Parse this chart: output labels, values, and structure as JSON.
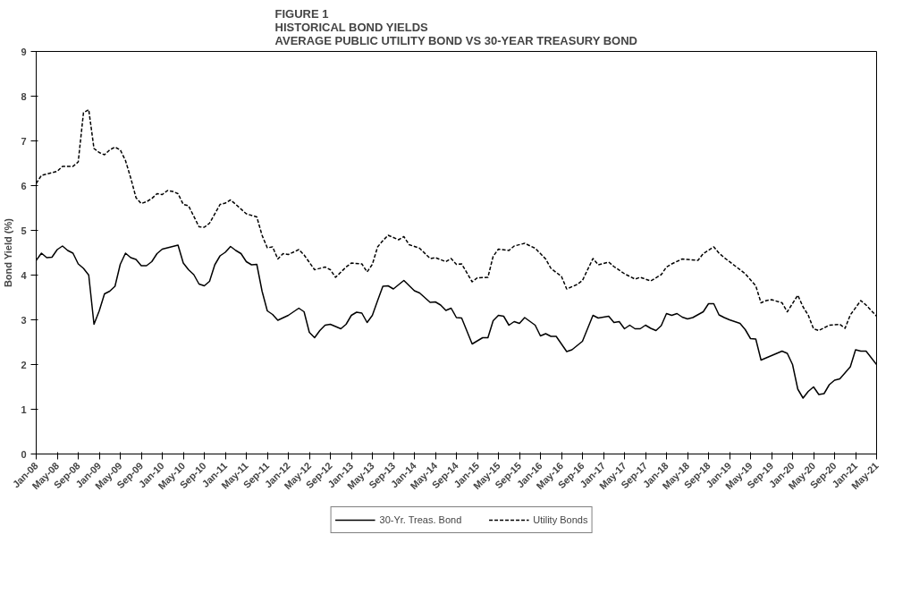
{
  "chart_data": {
    "type": "line",
    "title": "FIGURE 1\nHISTORICAL BOND YIELDS\nAVERAGE PUBLIC UTILITY BOND VS 30-YEAR TREASURY BOND",
    "ylabel": "Bond Yield (%)",
    "ylim": [
      0,
      9
    ],
    "yticks": [
      0,
      1,
      2,
      3,
      4,
      5,
      6,
      7,
      8,
      9
    ],
    "xlim": [
      "2008-01",
      "2021-05"
    ],
    "xticks": [
      {
        "value": "2008-01",
        "label": "Jan-08"
      },
      {
        "value": "2008-05",
        "label": "May-08"
      },
      {
        "value": "2008-09",
        "label": "Sep-08"
      },
      {
        "value": "2009-01",
        "label": "Jan-09"
      },
      {
        "value": "2009-05",
        "label": "May-09"
      },
      {
        "value": "2009-09",
        "label": "Sep-09"
      },
      {
        "value": "2010-01",
        "label": "Jan-10"
      },
      {
        "value": "2010-05",
        "label": "May-10"
      },
      {
        "value": "2010-09",
        "label": "Sep-10"
      },
      {
        "value": "2011-01",
        "label": "Jan-11"
      },
      {
        "value": "2011-05",
        "label": "May-11"
      },
      {
        "value": "2011-09",
        "label": "Sep-11"
      },
      {
        "value": "2012-01",
        "label": "Jan-12"
      },
      {
        "value": "2012-05",
        "label": "May-12"
      },
      {
        "value": "2012-09",
        "label": "Sep-12"
      },
      {
        "value": "2013-01",
        "label": "Jan-13"
      },
      {
        "value": "2013-05",
        "label": "May-13"
      },
      {
        "value": "2013-09",
        "label": "Sep-13"
      },
      {
        "value": "2014-01",
        "label": "Jan-14"
      },
      {
        "value": "2014-05",
        "label": "May-14"
      },
      {
        "value": "2014-09",
        "label": "Sep-14"
      },
      {
        "value": "2015-01",
        "label": "Jan-15"
      },
      {
        "value": "2015-05",
        "label": "May-15"
      },
      {
        "value": "2015-09",
        "label": "Sep-15"
      },
      {
        "value": "2016-01",
        "label": "Jan-16"
      },
      {
        "value": "2016-05",
        "label": "May-16"
      },
      {
        "value": "2016-09",
        "label": "Sep-16"
      },
      {
        "value": "2017-01",
        "label": "Jan-17"
      },
      {
        "value": "2017-05",
        "label": "May-17"
      },
      {
        "value": "2017-09",
        "label": "Sep-17"
      },
      {
        "value": "2018-01",
        "label": "Jan-18"
      },
      {
        "value": "2018-05",
        "label": "May-18"
      },
      {
        "value": "2018-09",
        "label": "Sep-18"
      },
      {
        "value": "2019-01",
        "label": "Jan-19"
      },
      {
        "value": "2019-05",
        "label": "May-19"
      },
      {
        "value": "2019-09",
        "label": "Sep-19"
      },
      {
        "value": "2020-01",
        "label": "Jan-20"
      },
      {
        "value": "2020-05",
        "label": "May-20"
      },
      {
        "value": "2020-09",
        "label": "Sep-20"
      },
      {
        "value": "2021-01",
        "label": "Jan-21"
      },
      {
        "value": "2021-05",
        "label": "May-21"
      }
    ],
    "grid": false,
    "legend": "bottom",
    "marker": "none",
    "series": [
      {
        "name": "30-Yr. Treas. Bond",
        "color": "#000000",
        "line_style": "solid",
        "x": [
          "2008-01",
          "2008-02",
          "2008-03",
          "2008-04",
          "2008-05",
          "2008-06",
          "2008-07",
          "2008-08",
          "2008-09",
          "2008-10",
          "2008-11",
          "2008-12",
          "2009-01",
          "2009-02",
          "2009-03",
          "2009-04",
          "2009-05",
          "2009-06",
          "2009-07",
          "2009-08",
          "2009-09",
          "2009-10",
          "2009-11",
          "2009-12",
          "2010-01",
          "2010-02",
          "2010-04",
          "2010-05",
          "2010-06",
          "2010-07",
          "2010-08",
          "2010-09",
          "2010-10",
          "2010-11",
          "2010-12",
          "2011-01",
          "2011-02",
          "2011-03",
          "2011-04",
          "2011-05",
          "2011-06",
          "2011-07",
          "2011-08",
          "2011-09",
          "2011-10",
          "2011-11",
          "2012-01",
          "2012-03",
          "2012-04",
          "2012-05",
          "2012-06",
          "2012-07",
          "2012-08",
          "2012-09",
          "2012-11",
          "2012-12",
          "2013-01",
          "2013-02",
          "2013-03",
          "2013-04",
          "2013-05",
          "2013-06",
          "2013-07",
          "2013-08",
          "2013-09",
          "2013-11",
          "2014-01",
          "2014-02",
          "2014-04",
          "2014-05",
          "2014-06",
          "2014-07",
          "2014-08",
          "2014-09",
          "2014-10",
          "2014-12",
          "2015-02",
          "2015-03",
          "2015-04",
          "2015-05",
          "2015-06",
          "2015-07",
          "2015-08",
          "2015-09",
          "2015-10",
          "2015-12",
          "2016-01",
          "2016-02",
          "2016-03",
          "2016-04",
          "2016-06",
          "2016-07",
          "2016-09",
          "2016-11",
          "2016-12",
          "2017-02",
          "2017-03",
          "2017-04",
          "2017-05",
          "2017-06",
          "2017-07",
          "2017-08",
          "2017-09",
          "2017-10",
          "2017-11",
          "2017-12",
          "2018-01",
          "2018-02",
          "2018-03",
          "2018-04",
          "2018-05",
          "2018-06",
          "2018-08",
          "2018-09",
          "2018-10",
          "2018-11",
          "2018-12",
          "2019-01",
          "2019-03",
          "2019-04",
          "2019-05",
          "2019-06",
          "2019-07",
          "2019-08",
          "2019-10",
          "2019-11",
          "2019-12",
          "2020-01",
          "2020-02",
          "2020-03",
          "2020-04",
          "2020-05",
          "2020-06",
          "2020-07",
          "2020-08",
          "2020-09",
          "2020-10",
          "2020-12",
          "2021-01",
          "2021-02",
          "2021-03",
          "2021-05"
        ],
        "values": [
          4.33,
          4.49,
          4.39,
          4.4,
          4.57,
          4.65,
          4.55,
          4.49,
          4.25,
          4.15,
          4.0,
          2.9,
          3.2,
          3.58,
          3.64,
          3.75,
          4.24,
          4.49,
          4.39,
          4.35,
          4.21,
          4.21,
          4.3,
          4.48,
          4.58,
          4.61,
          4.67,
          4.27,
          4.12,
          4.01,
          3.8,
          3.76,
          3.86,
          4.23,
          4.43,
          4.51,
          4.64,
          4.55,
          4.48,
          4.3,
          4.23,
          4.24,
          3.64,
          3.2,
          3.12,
          2.99,
          3.1,
          3.26,
          3.18,
          2.72,
          2.6,
          2.76,
          2.88,
          2.9,
          2.8,
          2.9,
          3.1,
          3.17,
          3.15,
          2.94,
          3.1,
          3.43,
          3.75,
          3.76,
          3.69,
          3.88,
          3.65,
          3.6,
          3.39,
          3.4,
          3.33,
          3.21,
          3.26,
          3.05,
          3.04,
          2.46,
          2.6,
          2.6,
          2.98,
          3.1,
          3.08,
          2.88,
          2.96,
          2.92,
          3.05,
          2.88,
          2.64,
          2.69,
          2.63,
          2.63,
          2.29,
          2.33,
          2.52,
          3.1,
          3.04,
          3.08,
          2.94,
          2.96,
          2.8,
          2.88,
          2.8,
          2.8,
          2.88,
          2.81,
          2.76,
          2.87,
          3.14,
          3.1,
          3.14,
          3.06,
          3.02,
          3.05,
          3.18,
          3.36,
          3.36,
          3.11,
          3.05,
          3.0,
          2.92,
          2.78,
          2.58,
          2.57,
          2.1,
          2.15,
          2.25,
          2.3,
          2.25,
          2.0,
          1.45,
          1.25,
          1.4,
          1.5,
          1.33,
          1.35,
          1.55,
          1.65,
          1.68,
          1.95,
          2.33,
          2.3,
          2.3,
          2.0
        ]
      },
      {
        "name": "Utility Bonds",
        "color": "#000000",
        "line_style": "dashed",
        "x": [
          "2008-01",
          "2008-02",
          "2008-03",
          "2008-05",
          "2008-06",
          "2008-08",
          "2008-09",
          "2008-10",
          "2008-11",
          "2008-12",
          "2009-01",
          "2009-02",
          "2009-03",
          "2009-04",
          "2009-05",
          "2009-06",
          "2009-07",
          "2009-08",
          "2009-09",
          "2009-10",
          "2009-11",
          "2009-12",
          "2010-01",
          "2010-02",
          "2010-03",
          "2010-04",
          "2010-05",
          "2010-06",
          "2010-08",
          "2010-09",
          "2010-10",
          "2010-12",
          "2011-01",
          "2011-02",
          "2011-03",
          "2011-05",
          "2011-07",
          "2011-08",
          "2011-09",
          "2011-10",
          "2011-11",
          "2011-12",
          "2012-01",
          "2012-03",
          "2012-04",
          "2012-06",
          "2012-08",
          "2012-09",
          "2012-10",
          "2012-12",
          "2013-01",
          "2013-03",
          "2013-04",
          "2013-05",
          "2013-06",
          "2013-07",
          "2013-08",
          "2013-10",
          "2013-11",
          "2013-12",
          "2014-02",
          "2014-04",
          "2014-05",
          "2014-07",
          "2014-08",
          "2014-09",
          "2014-10",
          "2014-12",
          "2015-01",
          "2015-03",
          "2015-04",
          "2015-05",
          "2015-07",
          "2015-08",
          "2015-10",
          "2015-12",
          "2016-02",
          "2016-03",
          "2016-05",
          "2016-06",
          "2016-08",
          "2016-09",
          "2016-11",
          "2016-12",
          "2017-02",
          "2017-03",
          "2017-05",
          "2017-07",
          "2017-08",
          "2017-10",
          "2017-12",
          "2018-01",
          "2018-02",
          "2018-04",
          "2018-05",
          "2018-07",
          "2018-08",
          "2018-10",
          "2018-11",
          "2018-12",
          "2019-02",
          "2019-04",
          "2019-06",
          "2019-07",
          "2019-08",
          "2019-09",
          "2019-11",
          "2019-12",
          "2020-02",
          "2020-03",
          "2020-04",
          "2020-05",
          "2020-06",
          "2020-08",
          "2020-10",
          "2020-11",
          "2020-12",
          "2021-02",
          "2021-03",
          "2021-05"
        ],
        "values": [
          6.05,
          6.23,
          6.26,
          6.32,
          6.43,
          6.43,
          6.53,
          7.63,
          7.7,
          6.83,
          6.74,
          6.69,
          6.8,
          6.86,
          6.8,
          6.56,
          6.17,
          5.73,
          5.6,
          5.64,
          5.71,
          5.82,
          5.8,
          5.89,
          5.87,
          5.82,
          5.58,
          5.55,
          5.08,
          5.07,
          5.16,
          5.58,
          5.61,
          5.68,
          5.58,
          5.37,
          5.3,
          4.89,
          4.61,
          4.63,
          4.36,
          4.48,
          4.46,
          4.57,
          4.45,
          4.12,
          4.18,
          4.12,
          3.95,
          4.18,
          4.27,
          4.25,
          4.07,
          4.24,
          4.63,
          4.77,
          4.89,
          4.79,
          4.86,
          4.68,
          4.6,
          4.37,
          4.39,
          4.3,
          4.37,
          4.24,
          4.25,
          3.85,
          3.94,
          3.95,
          4.42,
          4.58,
          4.55,
          4.65,
          4.71,
          4.6,
          4.36,
          4.15,
          3.97,
          3.69,
          3.79,
          3.88,
          4.37,
          4.23,
          4.29,
          4.19,
          4.03,
          3.91,
          3.95,
          3.87,
          4.01,
          4.18,
          4.25,
          4.36,
          4.35,
          4.33,
          4.48,
          4.63,
          4.49,
          4.39,
          4.21,
          4.03,
          3.76,
          3.38,
          3.43,
          3.45,
          3.38,
          3.18,
          3.55,
          3.29,
          3.1,
          2.8,
          2.76,
          2.88,
          2.9,
          2.81,
          3.11,
          3.43,
          3.33,
          3.08
        ]
      }
    ]
  }
}
